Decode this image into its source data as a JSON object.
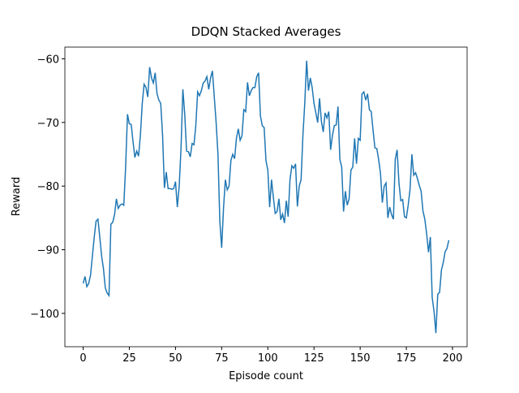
{
  "chart_data": {
    "type": "line",
    "title": "DDQN Stacked Averages",
    "x_label": "Episode count",
    "y_label": "Reward",
    "x": [
      0,
      1,
      2,
      3,
      4,
      5,
      6,
      7,
      8,
      9,
      10,
      11,
      12,
      13,
      14,
      15,
      16,
      17,
      18,
      19,
      20,
      21,
      22,
      23,
      24,
      25,
      26,
      27,
      28,
      29,
      30,
      31,
      32,
      33,
      34,
      35,
      36,
      37,
      38,
      39,
      40,
      41,
      42,
      43,
      44,
      45,
      46,
      47,
      48,
      49,
      50,
      51,
      52,
      53,
      54,
      55,
      56,
      57,
      58,
      59,
      60,
      61,
      62,
      63,
      64,
      65,
      66,
      67,
      68,
      69,
      70,
      71,
      72,
      73,
      74,
      75,
      76,
      77,
      78,
      79,
      80,
      81,
      82,
      83,
      84,
      85,
      86,
      87,
      88,
      89,
      90,
      91,
      92,
      93,
      94,
      95,
      96,
      97,
      98,
      99,
      100,
      101,
      102,
      103,
      104,
      105,
      106,
      107,
      108,
      109,
      110,
      111,
      112,
      113,
      114,
      115,
      116,
      117,
      118,
      119,
      120,
      121,
      122,
      123,
      124,
      125,
      126,
      127,
      128,
      129,
      130,
      131,
      132,
      133,
      134,
      135,
      136,
      137,
      138,
      139,
      140,
      141,
      142,
      143,
      144,
      145,
      146,
      147,
      148,
      149,
      150,
      151,
      152,
      153,
      154,
      155,
      156,
      157,
      158,
      159,
      160,
      161,
      162,
      163,
      164,
      165,
      166,
      167,
      168,
      169,
      170,
      171,
      172,
      173,
      174,
      175,
      176,
      177,
      178,
      179,
      180,
      181,
      182,
      183,
      184,
      185,
      186,
      187,
      188,
      189,
      190,
      191,
      192,
      193,
      194,
      195,
      196,
      197,
      198
    ],
    "series": [
      {
        "color": "#1f77b4",
        "values": [
          -95.3,
          -94.2,
          -95.8,
          -95.3,
          -94,
          -91,
          -88,
          -85.5,
          -85.2,
          -88,
          -91,
          -93,
          -96,
          -96.8,
          -97.2,
          -86,
          -85.7,
          -84.5,
          -82,
          -83.5,
          -83,
          -82.8,
          -83,
          -77,
          -68.7,
          -70.2,
          -70.3,
          -73,
          -75.5,
          -74.5,
          -75.3,
          -72,
          -67,
          -64,
          -64.5,
          -66,
          -61.3,
          -63,
          -63.8,
          -62.2,
          -65.5,
          -66.5,
          -67,
          -72,
          -80.3,
          -77.8,
          -80.4,
          -80.4,
          -80.5,
          -80.4,
          -79.3,
          -83.3,
          -80,
          -74,
          -64.8,
          -68.7,
          -74.5,
          -74.6,
          -75.4,
          -73.3,
          -73.5,
          -70.5,
          -65.2,
          -65.8,
          -65,
          -63.8,
          -63.5,
          -62.8,
          -64.8,
          -63,
          -61.9,
          -66,
          -70,
          -75,
          -85.5,
          -89.7,
          -83.5,
          -79,
          -80.6,
          -80,
          -76,
          -75,
          -75.7,
          -72.5,
          -71,
          -72.8,
          -72.1,
          -68,
          -68.3,
          -63.7,
          -65.8,
          -65,
          -64.5,
          -64.5,
          -62.8,
          -62.2,
          -69,
          -70.5,
          -70.8,
          -76,
          -77.5,
          -83.3,
          -79,
          -81.8,
          -84.3,
          -84,
          -82,
          -85.3,
          -84.4,
          -85.8,
          -82.3,
          -84.8,
          -79,
          -76.8,
          -77.2,
          -76.5,
          -83.2,
          -80,
          -79,
          -72,
          -67,
          -60.3,
          -65,
          -63,
          -64.5,
          -67,
          -68.5,
          -70,
          -66.2,
          -69.8,
          -71.5,
          -68.5,
          -69.3,
          -68.3,
          -74.3,
          -72,
          -70.5,
          -70.4,
          -67.5,
          -75.8,
          -77,
          -84,
          -80.8,
          -83,
          -82,
          -77.5,
          -77,
          -72.5,
          -76.5,
          -72.5,
          -72.8,
          -65.5,
          -65.2,
          -66.5,
          -65.5,
          -68,
          -68.3,
          -71.3,
          -74,
          -74.1,
          -75.8,
          -78,
          -82.6,
          -80,
          -79.5,
          -85,
          -83.3,
          -84.5,
          -85.2,
          -75.8,
          -74.3,
          -79.5,
          -82.3,
          -82.1,
          -84.8,
          -85,
          -83,
          -80.5,
          -75,
          -78.3,
          -77.9,
          -78.8,
          -79.9,
          -80.8,
          -83.9,
          -85.2,
          -87.5,
          -90.4,
          -88,
          -97.5,
          -99.7,
          -103.1,
          -97,
          -96.7,
          -93.2,
          -92,
          -90.3,
          -89.8,
          -88.5
        ]
      }
    ],
    "xlim": [
      -9.9,
      207.9
    ],
    "ylim": [
      -105.24,
      -58.16
    ],
    "xticks": [
      0,
      25,
      50,
      75,
      100,
      125,
      150,
      175,
      200
    ],
    "yticks": [
      {
        "value": -100,
        "label": "−100"
      },
      {
        "value": -90,
        "label": "−90"
      },
      {
        "value": -80,
        "label": "−80"
      },
      {
        "value": -70,
        "label": "−70"
      },
      {
        "value": -60,
        "label": "−60"
      }
    ]
  }
}
